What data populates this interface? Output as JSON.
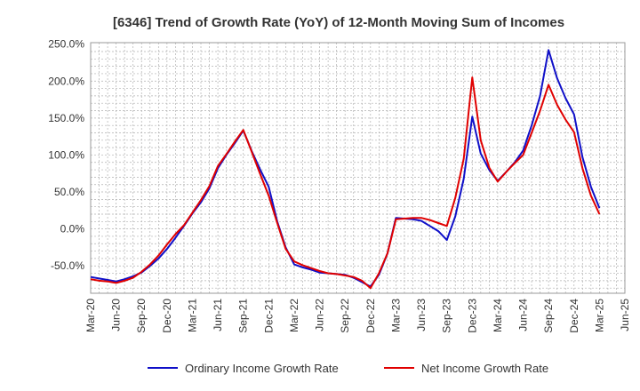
{
  "chart_data": {
    "type": "line",
    "title": "[6346]  Trend of Growth Rate (YoY) of 12-Month Moving Sum of Incomes",
    "xlabel": "",
    "ylabel": "",
    "y_unit": "%",
    "ylim": [
      -87,
      252
    ],
    "y_ticks": [
      250,
      200,
      150,
      100,
      50,
      0,
      -50
    ],
    "y_tick_labels": [
      "250.0%",
      "200.0%",
      "150.0%",
      "100.0%",
      "50.0%",
      "0.0%",
      "-50.0%"
    ],
    "x_start": "2020-03",
    "x_end": "2025-06",
    "x_tick_labels": [
      "Mar-20",
      "Jun-20",
      "Sep-20",
      "Dec-20",
      "Mar-21",
      "Jun-21",
      "Sep-21",
      "Dec-21",
      "Mar-22",
      "Jun-22",
      "Sep-22",
      "Dec-22",
      "Mar-23",
      "Jun-23",
      "Sep-23",
      "Dec-23",
      "Mar-24",
      "Jun-24",
      "Sep-24",
      "Dec-24",
      "Mar-25",
      "Jun-25"
    ],
    "x": [
      "2020-03",
      "2020-04",
      "2020-05",
      "2020-06",
      "2020-07",
      "2020-08",
      "2020-09",
      "2020-10",
      "2020-11",
      "2020-12",
      "2021-01",
      "2021-02",
      "2021-03",
      "2021-04",
      "2021-05",
      "2021-06",
      "2021-07",
      "2021-08",
      "2021-09",
      "2021-10",
      "2021-11",
      "2021-12",
      "2022-01",
      "2022-02",
      "2022-03",
      "2022-04",
      "2022-05",
      "2022-06",
      "2022-07",
      "2022-08",
      "2022-09",
      "2022-10",
      "2022-11",
      "2022-12",
      "2023-01",
      "2023-02",
      "2023-03",
      "2023-04",
      "2023-05",
      "2023-06",
      "2023-07",
      "2023-08",
      "2023-09",
      "2023-10",
      "2023-11",
      "2023-12",
      "2024-01",
      "2024-02",
      "2024-03",
      "2024-04",
      "2024-05",
      "2024-06",
      "2024-07",
      "2024-08",
      "2024-09",
      "2024-10",
      "2024-11",
      "2024-12",
      "2025-01",
      "2025-02",
      "2025-03"
    ],
    "series": [
      {
        "name": "Ordinary Income Growth Rate",
        "color": "#1010c8",
        "values": [
          -65,
          -67,
          -69,
          -71,
          -68,
          -64,
          -59,
          -50,
          -40,
          -27,
          -12,
          4,
          21,
          36,
          55,
          82,
          100,
          116,
          133,
          105,
          80,
          57,
          10,
          -25,
          -48,
          -52,
          -55,
          -59,
          -60,
          -61,
          -62,
          -66,
          -72,
          -78,
          -62,
          -33,
          15,
          14,
          13,
          11,
          4,
          -3,
          -15,
          17,
          68,
          152,
          102,
          80,
          65,
          77,
          90,
          106,
          140,
          180,
          242,
          204,
          177,
          155,
          97,
          57,
          28
        ]
      },
      {
        "name": "Net Income Growth Rate",
        "color": "#e00000",
        "values": [
          -68,
          -70,
          -71,
          -73,
          -70,
          -66,
          -58,
          -48,
          -36,
          -21,
          -7,
          5,
          22,
          39,
          58,
          85,
          101,
          118,
          134,
          104,
          74,
          45,
          8,
          -27,
          -44,
          -49,
          -53,
          -57,
          -60,
          -61,
          -63,
          -65,
          -70,
          -80,
          -60,
          -33,
          13,
          14,
          15,
          15,
          12,
          8,
          4,
          42,
          95,
          205,
          120,
          83,
          64,
          77,
          89,
          100,
          130,
          160,
          195,
          168,
          148,
          131,
          82,
          45,
          20
        ]
      }
    ],
    "legend_position": "bottom-center",
    "grid": true
  }
}
